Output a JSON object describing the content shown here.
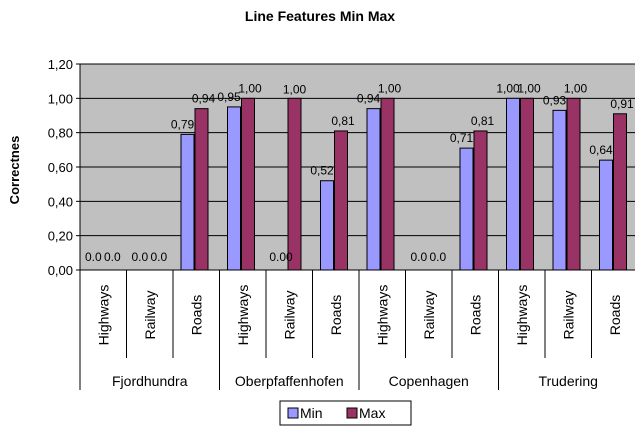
{
  "chart_data": {
    "type": "bar",
    "title": "Line Features Min Max",
    "ylabel": "Correctnes",
    "xlabel": "",
    "ylim": [
      0,
      1.2
    ],
    "yticks": [
      "0,00",
      "0,20",
      "0,40",
      "0,60",
      "0,80",
      "1,00",
      "1,20"
    ],
    "groups": [
      "Fjordhundra",
      "Oberpfaffenhofen",
      "Copenhagen",
      "Trudering"
    ],
    "categories": [
      "Highways",
      "Railway",
      "Roads",
      "Highways",
      "Railway",
      "Roads",
      "Highways",
      "Railway",
      "Roads",
      "Highways",
      "Railway",
      "Roads"
    ],
    "series": [
      {
        "name": "Min",
        "color": "#9999ff",
        "values": [
          0,
          0,
          0.79,
          0.95,
          0,
          0.52,
          0.94,
          0,
          0.71,
          1.0,
          0.93,
          0.64
        ],
        "labels": [
          "0.0",
          "0.0",
          "0,79",
          "0,95",
          "0.00",
          "0,52",
          "0,94",
          "0.0",
          "0,71",
          "1,00",
          "0,93",
          "0,64"
        ]
      },
      {
        "name": "Max",
        "color": "#993366",
        "values": [
          0,
          0,
          0.94,
          1.0,
          1.0,
          0.81,
          1.0,
          0,
          0.81,
          1.0,
          1.0,
          0.91
        ],
        "labels": [
          "0.0",
          "0.0",
          "0,94",
          "1,00",
          "1,00",
          "0,81",
          "1,00",
          "0.0",
          "0,81",
          "1,00",
          "1,00",
          "0,91"
        ]
      }
    ],
    "legend": "bottom",
    "grid": true,
    "plot_background": "#c0c0c0"
  }
}
